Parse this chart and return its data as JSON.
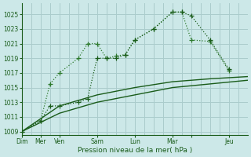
{
  "background_color": "#cce8e8",
  "grid_color": "#aacccc",
  "line_color_dark": "#1a5c1a",
  "line_color_mid": "#2d7a2d",
  "xlabel": "Pression niveau de la mer( hPa )",
  "ylim": [
    1008.5,
    1026.5
  ],
  "yticks": [
    1009,
    1011,
    1013,
    1015,
    1017,
    1019,
    1021,
    1023,
    1025
  ],
  "xlim": [
    0,
    24
  ],
  "xtick_pos": [
    0,
    2,
    4,
    8,
    12,
    16,
    18,
    22
  ],
  "xtick_labels": [
    "Dim",
    "Mer",
    "Ven",
    "Sam",
    "Lun",
    "Mar",
    "",
    "Jeu"
  ],
  "num_xgrid": 25,
  "dotted1_x": [
    0,
    2,
    3,
    4,
    6,
    7,
    8,
    9,
    10,
    11,
    12,
    14,
    16,
    17,
    18,
    20,
    22
  ],
  "dotted1_y": [
    1009,
    1010.5,
    1015.5,
    1017,
    1019.0,
    1021.0,
    1021.0,
    1019.0,
    1019.3,
    1019.5,
    1021.5,
    1023.0,
    1025.3,
    1025.3,
    1021.5,
    1021.3,
    1017.3
  ],
  "dotted2_x": [
    0,
    2,
    3,
    4,
    6,
    7,
    8,
    9,
    10,
    11,
    12,
    14,
    16,
    17,
    18,
    20,
    22
  ],
  "dotted2_y": [
    1009,
    1010.5,
    1012.5,
    1012.5,
    1013.0,
    1013.5,
    1019.0,
    1019.0,
    1019.0,
    1019.5,
    1021.5,
    1023.0,
    1025.3,
    1025.3,
    1024.8,
    1021.5,
    1017.5
  ],
  "solid1_x": [
    0,
    4,
    8,
    12,
    16,
    20,
    24
  ],
  "solid1_y": [
    1009,
    1012.5,
    1014.0,
    1015.0,
    1015.8,
    1016.2,
    1016.5
  ],
  "solid2_x": [
    0,
    4,
    8,
    12,
    16,
    20,
    24
  ],
  "solid2_y": [
    1009,
    1011.5,
    1013.0,
    1014.0,
    1015.0,
    1015.5,
    1016.0
  ]
}
